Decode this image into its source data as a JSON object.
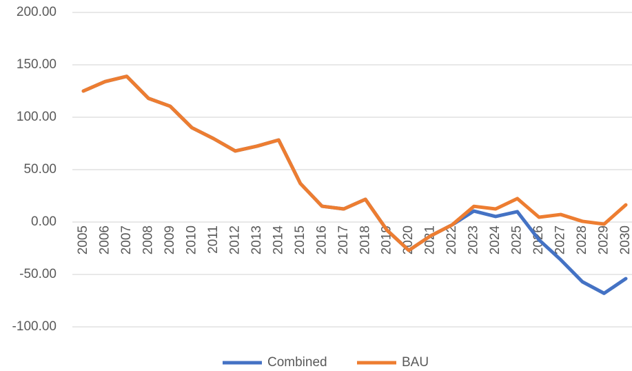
{
  "chart_data": {
    "type": "line",
    "categories": [
      "2005",
      "2006",
      "2007",
      "2008",
      "2009",
      "2010",
      "2011",
      "2012",
      "2013",
      "2014",
      "2015",
      "2016",
      "2017",
      "2018",
      "2019",
      "2020",
      "2021",
      "2022",
      "2023",
      "2024",
      "2025",
      "2026",
      "2027",
      "2028",
      "2029",
      "2030"
    ],
    "series": [
      {
        "name": "Combined",
        "color": "#4472c4",
        "values": [
          125,
          134,
          139,
          118,
          110.5,
          90,
          79.6,
          67.8,
          72.4,
          78.3,
          36.8,
          15.1,
          12.5,
          21.7,
          -7.9,
          -27,
          -13.2,
          -2.6,
          10.5,
          5.3,
          9.9,
          -17,
          -36,
          -57,
          -68,
          -54
        ]
      },
      {
        "name": "BAU",
        "color": "#ed7d31",
        "values": [
          125,
          134,
          139,
          118,
          110.5,
          90,
          79.6,
          67.8,
          72.4,
          78.3,
          36.8,
          15.1,
          12.5,
          21.7,
          -7.9,
          -27,
          -13.2,
          -2.6,
          15,
          12.5,
          22.4,
          4.6,
          7.2,
          0.7,
          -2,
          16.4
        ]
      }
    ],
    "ylim": [
      -100,
      200
    ],
    "yticks": [
      {
        "value": -100,
        "label": "-100.00"
      },
      {
        "value": -50,
        "label": "-50.00"
      },
      {
        "value": 0,
        "label": "0.00"
      },
      {
        "value": 50,
        "label": "50.00"
      },
      {
        "value": 100,
        "label": "100.00"
      },
      {
        "value": 150,
        "label": "150.00"
      },
      {
        "value": 200,
        "label": "200.00"
      }
    ],
    "grid": true,
    "legend": "bottom"
  }
}
